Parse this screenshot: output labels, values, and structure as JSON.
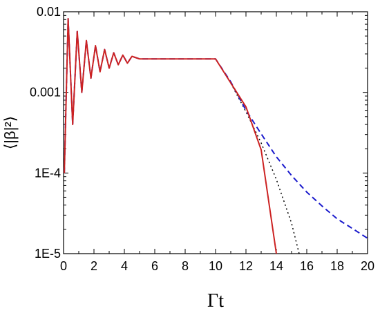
{
  "chart_data": {
    "type": "line",
    "xlabel": "Γt",
    "ylabel": "⟨|β|²⟩",
    "xlim": [
      0,
      20
    ],
    "ylim": [
      1e-05,
      0.01
    ],
    "yscale": "log",
    "grid": false,
    "x_ticks": [
      0,
      2,
      4,
      6,
      8,
      10,
      12,
      14,
      16,
      18,
      20
    ],
    "x_tick_labels": [
      "0",
      "2",
      "4",
      "6",
      "8",
      "10",
      "12",
      "14",
      "16",
      "18",
      "20"
    ],
    "y_ticks": [
      1e-05,
      0.0001,
      0.001,
      0.01
    ],
    "y_tick_labels": [
      "1E-5",
      "1E-4",
      "0.001",
      "0.01"
    ],
    "plateau_level": 0.0026,
    "series": [
      {
        "style": "solid",
        "color": "#cc2222",
        "x": [
          0.05,
          0.3,
          0.6,
          0.9,
          1.2,
          1.5,
          1.8,
          2.1,
          2.4,
          2.7,
          3.0,
          3.3,
          3.6,
          3.9,
          4.2,
          4.5,
          5.0,
          6.0,
          8.0,
          10.0,
          11.0,
          12.0,
          13.0,
          14.0
        ],
        "y": [
          0.0001,
          0.0082,
          0.0004,
          0.0057,
          0.001,
          0.0044,
          0.0015,
          0.0038,
          0.0018,
          0.0034,
          0.002,
          0.0031,
          0.0022,
          0.0029,
          0.0023,
          0.0028,
          0.0026,
          0.0026,
          0.0026,
          0.0026,
          0.00131,
          0.00066,
          0.000194,
          1e-05
        ]
      },
      {
        "style": "dashed",
        "color": "#1a1acc",
        "x": [
          0.05,
          0.3,
          0.6,
          0.9,
          1.2,
          1.5,
          1.8,
          2.1,
          2.4,
          2.7,
          3.0,
          3.3,
          3.6,
          3.9,
          4.2,
          4.5,
          5.0,
          6.0,
          8.0,
          10.0,
          11.0,
          12.0,
          13.0,
          14.0,
          15.0,
          16.0,
          17.0,
          18.0,
          19.0,
          20.0
        ],
        "y": [
          0.0001,
          0.0082,
          0.0004,
          0.0057,
          0.001,
          0.0044,
          0.0015,
          0.0038,
          0.0018,
          0.0034,
          0.002,
          0.0031,
          0.0022,
          0.0029,
          0.0023,
          0.0028,
          0.0026,
          0.0026,
          0.0026,
          0.0026,
          0.00135,
          0.0006,
          0.000306,
          0.000159,
          9.3e-05,
          5.8e-05,
          3.9e-05,
          2.7e-05,
          2.05e-05,
          1.55e-05
        ]
      },
      {
        "style": "dotted",
        "color": "#000000",
        "x": [
          10.0,
          11.0,
          12.0,
          13.0,
          14.0,
          15.0,
          15.5
        ],
        "y": [
          0.0026,
          0.0013,
          0.000576,
          0.000236,
          8.34e-05,
          2.38e-05,
          1e-05
        ]
      }
    ]
  }
}
